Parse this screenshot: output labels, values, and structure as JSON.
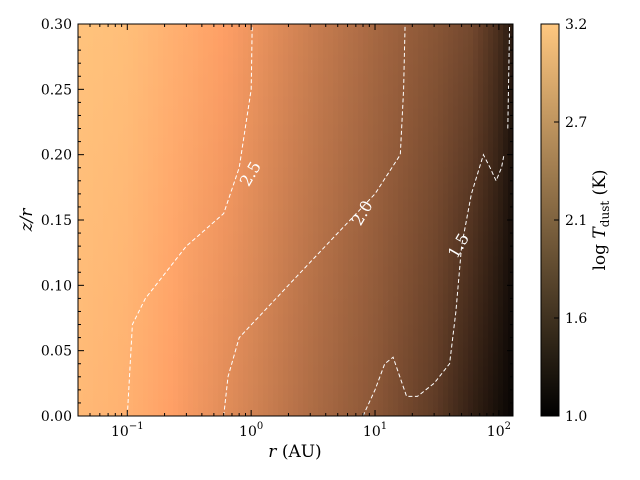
{
  "chart_data": {
    "type": "heatmap",
    "title": "",
    "xlabel": "r (AU)",
    "ylabel": "z/r",
    "xscale": "log",
    "xlim": [
      0.04,
      130
    ],
    "ylim": [
      0.0,
      0.3
    ],
    "x_ticks": [
      {
        "value": 0.1,
        "base": "10",
        "exp": "−1"
      },
      {
        "value": 1,
        "base": "10",
        "exp": "0"
      },
      {
        "value": 10,
        "base": "10",
        "exp": "1"
      },
      {
        "value": 100,
        "base": "10",
        "exp": "2"
      }
    ],
    "y_ticks": [
      "0.00",
      "0.05",
      "0.10",
      "0.15",
      "0.20",
      "0.25",
      "0.30"
    ],
    "colorbar": {
      "label": "log T_dust (K)",
      "label_prefix": "log ",
      "label_symbol": "T",
      "label_subscript": "dust",
      "label_unit": " (K)",
      "range": [
        1.0,
        3.2
      ],
      "ticks": [
        "1.0",
        "1.6",
        "2.1",
        "2.7",
        "3.2"
      ],
      "colormap": "copper",
      "colors": [
        "#000000",
        "#ffc77f"
      ]
    },
    "grid": false,
    "contour_color": "#ffffff",
    "contours": [
      {
        "level": "2.5",
        "label_at": {
          "r": 1.0,
          "z": 0.185
        },
        "points": [
          [
            0.1,
            0.0
          ],
          [
            0.11,
            0.07
          ],
          [
            0.14,
            0.09
          ],
          [
            0.3,
            0.13
          ],
          [
            0.6,
            0.155
          ],
          [
            0.8,
            0.19
          ],
          [
            1.0,
            0.25
          ],
          [
            1.02,
            0.3
          ]
        ]
      },
      {
        "level": "2.0",
        "label_at": {
          "r": 8.0,
          "z": 0.155
        },
        "points": [
          [
            0.6,
            0.0
          ],
          [
            0.65,
            0.03
          ],
          [
            0.8,
            0.06
          ],
          [
            2.0,
            0.1
          ],
          [
            5.0,
            0.14
          ],
          [
            10.0,
            0.17
          ],
          [
            16.0,
            0.2
          ],
          [
            17.0,
            0.25
          ],
          [
            17.5,
            0.3
          ]
        ]
      },
      {
        "level": "1.5",
        "label_at": {
          "r": 48.0,
          "z": 0.13
        },
        "points": [
          [
            8.0,
            0.0
          ],
          [
            10.0,
            0.02
          ],
          [
            12.0,
            0.04
          ],
          [
            14.0,
            0.045
          ],
          [
            18.0,
            0.015
          ],
          [
            22.0,
            0.015
          ],
          [
            30.0,
            0.025
          ],
          [
            40.0,
            0.04
          ],
          [
            45.0,
            0.08
          ],
          [
            50.0,
            0.13
          ],
          [
            60.0,
            0.17
          ],
          [
            75.0,
            0.2
          ],
          [
            85.0,
            0.19
          ],
          [
            95.0,
            0.18
          ],
          [
            105.0,
            0.19
          ],
          [
            110.0,
            0.2
          ]
        ]
      },
      {
        "level": "",
        "points": [
          [
            118.0,
            0.22
          ],
          [
            120.0,
            0.26
          ],
          [
            122.0,
            0.3
          ]
        ]
      }
    ],
    "temperature_profile": {
      "r": [
        0.04,
        0.1,
        0.3,
        1.0,
        3.0,
        10.0,
        30.0,
        60.0,
        100.0,
        130.0
      ],
      "logT_midplane": [
        3.05,
        2.95,
        2.7,
        2.45,
        2.2,
        1.95,
        1.65,
        1.35,
        1.15,
        1.05
      ],
      "logT_top": [
        3.15,
        3.1,
        2.9,
        2.65,
        2.4,
        2.15,
        1.95,
        1.8,
        1.5,
        1.25
      ]
    }
  }
}
